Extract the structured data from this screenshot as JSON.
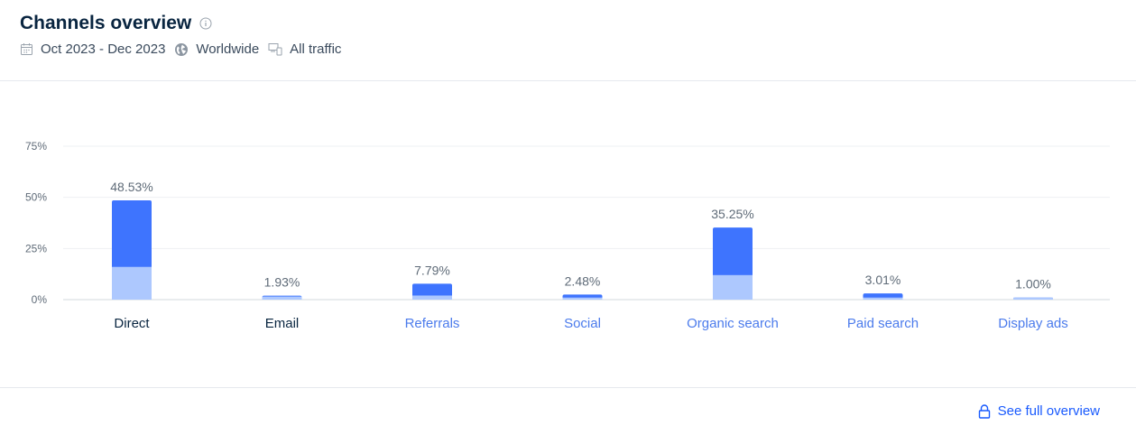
{
  "header": {
    "title": "Channels overview",
    "date_range": "Oct 2023 - Dec 2023",
    "region": "Worldwide",
    "traffic": "All traffic"
  },
  "footer": {
    "link_label": "See full overview"
  },
  "colors": {
    "dark_bar": "#3e74fe",
    "light_bar": "#adc8fe",
    "link": "#195afe",
    "label_dark": "#092540",
    "label_link": "#4b7bec"
  },
  "chart_data": {
    "type": "bar",
    "categories": [
      "Direct",
      "Email",
      "Referrals",
      "Social",
      "Organic search",
      "Paid search",
      "Display ads"
    ],
    "category_is_link": [
      false,
      false,
      true,
      true,
      true,
      true,
      true
    ],
    "values": [
      48.53,
      1.93,
      7.79,
      2.48,
      35.25,
      3.01,
      1.0
    ],
    "value_labels": [
      "48.53%",
      "1.93%",
      "7.79%",
      "2.48%",
      "35.25%",
      "3.01%",
      "1.00%"
    ],
    "light_segment": [
      16,
      1.5,
      2,
      1,
      12,
      1,
      1.0
    ],
    "yticks": [
      "0%",
      "25%",
      "50%",
      "75%"
    ],
    "ytick_values": [
      0,
      25,
      50,
      75
    ],
    "ylim": [
      0,
      75
    ],
    "grid": true
  }
}
